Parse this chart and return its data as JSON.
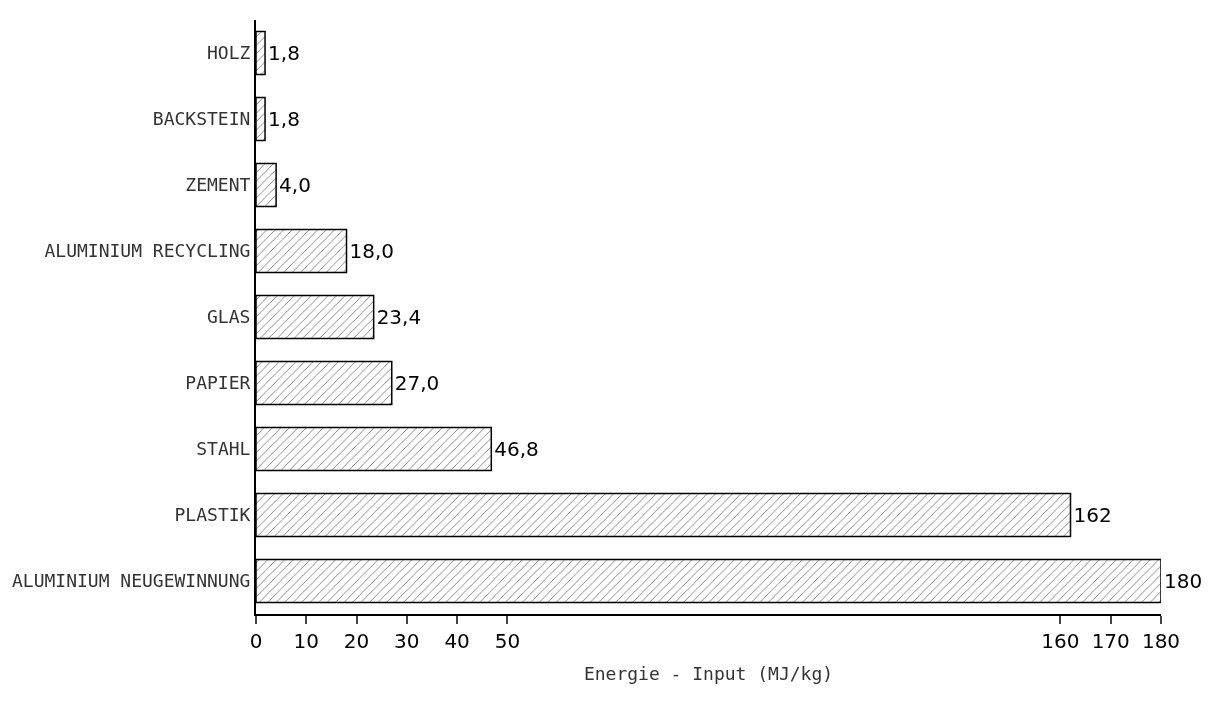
{
  "chart_data": {
    "type": "bar",
    "orientation": "horizontal",
    "xlabel": "Energie - Input (MJ/kg)",
    "categories": [
      "HOLZ",
      "BACKSTEIN",
      "ZEMENT",
      "ALUMINIUM RECYCLING",
      "GLAS",
      "PAPIER",
      "STAHL",
      "PLASTIK",
      "ALUMINIUM NEUGEWINNUNG"
    ],
    "values": [
      1.8,
      1.8,
      4.0,
      18.0,
      23.4,
      27.0,
      46.8,
      162,
      180
    ],
    "value_labels": [
      "1,8",
      "1,8",
      "4,0",
      "18,0",
      "23,4",
      "27,0",
      "46,8",
      "162",
      "180"
    ],
    "color": "#000000",
    "xlim": [
      0,
      180
    ],
    "xticks": [
      0,
      10,
      20,
      30,
      40,
      50,
      160,
      170,
      180
    ]
  }
}
